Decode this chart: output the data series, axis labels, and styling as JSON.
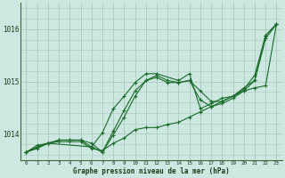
{
  "xlabel": "Graphe pression niveau de la mer (hPa)",
  "xlim": [
    -0.5,
    23.5
  ],
  "ylim": [
    1013.5,
    1016.5
  ],
  "yticks": [
    1014,
    1015,
    1016
  ],
  "xticks": [
    0,
    1,
    2,
    3,
    4,
    5,
    6,
    7,
    8,
    9,
    10,
    11,
    12,
    13,
    14,
    15,
    16,
    17,
    18,
    19,
    20,
    21,
    22,
    23
  ],
  "bg_color": "#cce8e0",
  "grid_color": "#aaccbb",
  "line_color": "#1a6b2a",
  "series": [
    {
      "x": [
        0,
        1,
        2,
        3,
        4,
        5,
        6,
        7,
        8,
        9,
        10,
        11,
        12,
        13,
        14,
        15,
        16,
        17,
        18,
        19,
        20,
        21,
        22,
        23
      ],
      "y": [
        1013.65,
        1013.78,
        1013.82,
        1013.85,
        1013.85,
        1013.85,
        1013.72,
        1013.68,
        1013.82,
        1013.92,
        1014.08,
        1014.12,
        1014.12,
        1014.18,
        1014.22,
        1014.32,
        1014.42,
        1014.52,
        1014.62,
        1014.72,
        1014.82,
        1014.88,
        1014.92,
        1016.1
      ]
    },
    {
      "x": [
        0,
        1,
        2,
        3,
        4,
        5,
        6,
        7,
        8,
        9,
        10,
        11,
        12,
        13,
        14,
        15,
        16,
        17,
        18,
        19,
        20,
        21,
        22,
        23
      ],
      "y": [
        1013.65,
        1013.75,
        1013.82,
        1013.88,
        1013.88,
        1013.88,
        1013.75,
        1013.65,
        1014.05,
        1014.45,
        1014.82,
        1015.02,
        1015.08,
        1014.98,
        1014.98,
        1015.02,
        1014.65,
        1014.52,
        1014.58,
        1014.68,
        1014.82,
        1015.02,
        1015.82,
        1016.1
      ]
    },
    {
      "x": [
        0,
        1,
        2,
        3,
        4,
        5,
        6,
        7,
        8,
        9,
        10,
        11,
        12,
        13,
        14,
        15,
        16,
        17,
        18,
        19,
        20,
        21,
        22,
        23
      ],
      "y": [
        1013.65,
        1013.72,
        1013.82,
        1013.88,
        1013.88,
        1013.88,
        1013.82,
        1013.65,
        1013.98,
        1014.32,
        1014.72,
        1015.02,
        1015.12,
        1015.02,
        1014.98,
        1015.02,
        1014.82,
        1014.62,
        1014.62,
        1014.72,
        1014.85,
        1015.12,
        1015.88,
        1016.1
      ]
    },
    {
      "x": [
        0,
        2,
        6,
        7,
        8,
        9,
        10,
        11,
        12,
        14,
        15,
        16,
        17,
        18,
        19,
        20,
        21,
        22,
        23
      ],
      "y": [
        1013.65,
        1013.82,
        1013.75,
        1014.02,
        1014.48,
        1014.72,
        1014.98,
        1015.15,
        1015.15,
        1015.02,
        1015.15,
        1014.48,
        1014.58,
        1014.68,
        1014.72,
        1014.88,
        1015.02,
        1015.88,
        1016.1
      ]
    }
  ]
}
